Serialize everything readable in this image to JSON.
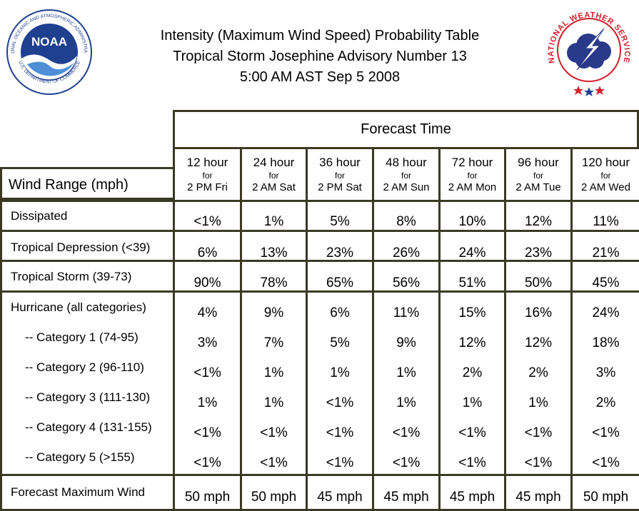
{
  "header": {
    "title_line1": "Intensity (Maximum Wind Speed) Probability Table",
    "title_line2": "Tropical Storm Josephine Advisory Number 13",
    "title_line3": "5:00 AM AST Sep 5 2008",
    "noaa_logo": {
      "center_text": "NOAA",
      "ring_text": "NATIONAL OCEANIC AND ATMOSPHERIC ADMINISTRATION",
      "ring_text_bottom": "U.S. DEPARTMENT OF COMMERCE"
    },
    "nws_logo": {
      "ring_text": "NATIONAL WEATHER SERVICE"
    }
  },
  "colors": {
    "border": "#3a3a24",
    "noaa_blue": "#1f3f8f",
    "nws_red": "#d0202a",
    "nws_cloud": "#2a3a8a"
  },
  "table": {
    "forecast_time_label": "Forecast Time",
    "wind_range_label": "Wind Range (mph)",
    "columns": [
      {
        "hours": "12 hour",
        "for": "for",
        "when": "2 PM Fri"
      },
      {
        "hours": "24 hour",
        "for": "for",
        "when": "2 AM Sat"
      },
      {
        "hours": "36 hour",
        "for": "for",
        "when": "2 PM Sat"
      },
      {
        "hours": "48 hour",
        "for": "for",
        "when": "2 AM Sun"
      },
      {
        "hours": "72 hour",
        "for": "for",
        "when": "2 AM Mon"
      },
      {
        "hours": "96 hour",
        "for": "for",
        "when": "2 AM Tue"
      },
      {
        "hours": "120 hour",
        "for": "for",
        "when": "2 AM Wed"
      }
    ],
    "dissipated": {
      "label": "Dissipated",
      "values": [
        "<1%",
        "1%",
        "5%",
        "8%",
        "10%",
        "12%",
        "11%"
      ]
    },
    "tropical_depression": {
      "label": "Tropical Depression (<39)",
      "values": [
        "6%",
        "13%",
        "23%",
        "26%",
        "24%",
        "23%",
        "21%"
      ]
    },
    "tropical_storm": {
      "label": "Tropical Storm (39-73)",
      "values": [
        "90%",
        "78%",
        "65%",
        "56%",
        "51%",
        "50%",
        "45%"
      ]
    },
    "hurricane": [
      {
        "label": "Hurricane (all categories)",
        "values": [
          "4%",
          "9%",
          "6%",
          "11%",
          "15%",
          "16%",
          "24%"
        ]
      },
      {
        "label": "-- Category 1 (74-95)",
        "values": [
          "3%",
          "7%",
          "5%",
          "9%",
          "12%",
          "12%",
          "18%"
        ]
      },
      {
        "label": "-- Category 2 (96-110)",
        "values": [
          "<1%",
          "1%",
          "1%",
          "1%",
          "2%",
          "2%",
          "3%"
        ]
      },
      {
        "label": "-- Category 3 (111-130)",
        "values": [
          "1%",
          "1%",
          "<1%",
          "1%",
          "1%",
          "1%",
          "2%"
        ]
      },
      {
        "label": "-- Category 4 (131-155)",
        "values": [
          "<1%",
          "<1%",
          "<1%",
          "<1%",
          "<1%",
          "<1%",
          "<1%"
        ]
      },
      {
        "label": "-- Category 5 (>155)",
        "values": [
          "<1%",
          "<1%",
          "<1%",
          "<1%",
          "<1%",
          "<1%",
          "<1%"
        ]
      }
    ],
    "forecast_max_wind": {
      "label": "Forecast Maximum Wind",
      "values": [
        "50 mph",
        "50 mph",
        "45 mph",
        "45 mph",
        "45 mph",
        "45 mph",
        "50 mph"
      ]
    }
  }
}
